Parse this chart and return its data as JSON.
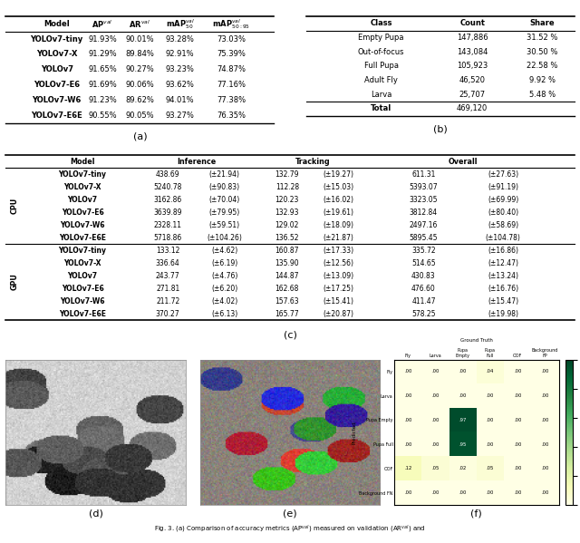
{
  "table_a": {
    "headers": [
      "Model",
      "AP$^{val}$",
      "AR$^{val}$",
      "mAP$^{val}_{50}$",
      "mAP$^{val}_{50:95}$"
    ],
    "rows": [
      [
        "YOLOv7-tiny",
        "91.93%",
        "90.01%",
        "93.28%",
        "73.03%"
      ],
      [
        "YOLOv7-X",
        "91.29%",
        "89.84%",
        "92.91%",
        "75.39%"
      ],
      [
        "YOLOv7",
        "91.65%",
        "90.27%",
        "93.23%",
        "74.87%"
      ],
      [
        "YOLOv7-E6",
        "91.69%",
        "90.06%",
        "93.62%",
        "77.16%"
      ],
      [
        "YOLOv7-W6",
        "91.23%",
        "89.62%",
        "94.01%",
        "77.38%"
      ],
      [
        "YOLOv7-E6E",
        "90.55%",
        "90.05%",
        "93.27%",
        "76.35%"
      ]
    ],
    "label": "(a)"
  },
  "table_b": {
    "headers": [
      "Class",
      "Count",
      "Share"
    ],
    "rows": [
      [
        "Empty Pupa",
        "147,886",
        "31.52 %"
      ],
      [
        "Out-of-focus",
        "143,084",
        "30.50 %"
      ],
      [
        "Full Pupa",
        "105,923",
        "22.58 %"
      ],
      [
        "Adult Fly",
        "46,520",
        "9.92 %"
      ],
      [
        "Larva",
        "25,707",
        "5.48 %"
      ]
    ],
    "total_row": [
      "Total",
      "469,120",
      ""
    ],
    "label": "(b)"
  },
  "table_c": {
    "cpu_rows": [
      [
        "YOLOv7-tiny",
        "438.69",
        "(±21.94)",
        "132.79",
        "(±19.27)",
        "611.31",
        "(±27.63)"
      ],
      [
        "YOLOv7-X",
        "5240.78",
        "(±90.83)",
        "112.28",
        "(±15.03)",
        "5393.07",
        "(±91.19)"
      ],
      [
        "YOLOv7",
        "3162.86",
        "(±70.04)",
        "120.23",
        "(±16.02)",
        "3323.05",
        "(±69.99)"
      ],
      [
        "YOLOv7-E6",
        "3639.89",
        "(±79.95)",
        "132.93",
        "(±19.61)",
        "3812.84",
        "(±80.40)"
      ],
      [
        "YOLOv7-W6",
        "2328.11",
        "(±59.51)",
        "129.02",
        "(±18.09)",
        "2497.16",
        "(±58.69)"
      ],
      [
        "YOLOv7-E6E",
        "5718.86",
        "(±104.26)",
        "136.52",
        "(±21.87)",
        "5895.45",
        "(±104.78)"
      ]
    ],
    "gpu_rows": [
      [
        "YOLOv7-tiny",
        "133.12",
        "(±4.62)",
        "160.87",
        "(±17.33)",
        "335.72",
        "(±16.86)"
      ],
      [
        "YOLOv7-X",
        "336.64",
        "(±6.19)",
        "135.90",
        "(±12.56)",
        "514.65",
        "(±12.47)"
      ],
      [
        "YOLOv7",
        "243.77",
        "(±4.76)",
        "144.87",
        "(±13.09)",
        "430.83",
        "(±13.24)"
      ],
      [
        "YOLOv7-E6",
        "271.81",
        "(±6.20)",
        "162.68",
        "(±17.25)",
        "476.60",
        "(±16.76)"
      ],
      [
        "YOLOv7-W6",
        "211.72",
        "(±4.02)",
        "157.63",
        "(±15.41)",
        "411.47",
        "(±15.47)"
      ],
      [
        "YOLOv7-E6E",
        "370.27",
        "(±6.13)",
        "165.77",
        "(±20.87)",
        "578.25",
        "(±19.98)"
      ]
    ],
    "label": "(c)"
  },
  "cm_data": [
    [
      0.0,
      0.0,
      0.0,
      0.04,
      0.0,
      0.0
    ],
    [
      0.0,
      0.0,
      0.0,
      0.0,
      0.0,
      0.0
    ],
    [
      0.0,
      0.0,
      0.97,
      0.0,
      0.0,
      0.0
    ],
    [
      0.0,
      0.0,
      0.95,
      0.0,
      0.0,
      0.0
    ],
    [
      0.12,
      0.05,
      0.02,
      0.05,
      0.0,
      0.0
    ],
    [
      0.0,
      0.0,
      0.0,
      0.0,
      0.0,
      0.0
    ]
  ],
  "cm_xlabels": [
    "Fly",
    "Larva",
    "Pupa\nEmpty",
    "Pupa\nFull",
    "OOF",
    "Background\nFP"
  ],
  "cm_ylabels": [
    "Fly",
    "Larva",
    "Pupa Empty",
    "Pupa Full",
    "OOF",
    "Background FN"
  ],
  "bg_color": "#ffffff"
}
